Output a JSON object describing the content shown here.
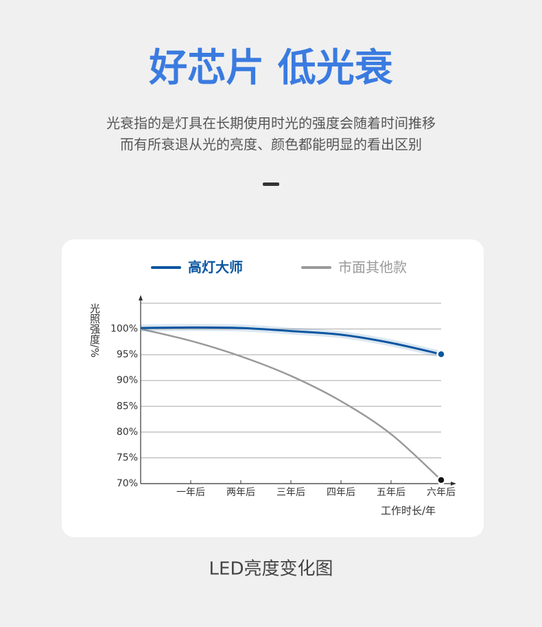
{
  "header": {
    "title": "好芯片 低光衰",
    "subtitle": [
      "光衰指的是灯具在长期使用时光的强度会随着时间推移",
      "而有所衰退从光的亮度、颜色都能明显的看出区别"
    ]
  },
  "chart_data": {
    "type": "line",
    "y_label": "光照强度/%",
    "x_label": "工作时长/年",
    "x": [
      0,
      1,
      2,
      3,
      4,
      5,
      6
    ],
    "xlim": [
      0,
      6
    ],
    "xticks": [
      {
        "value": 1,
        "label": "一年后"
      },
      {
        "value": 2,
        "label": "两年后"
      },
      {
        "value": 3,
        "label": "三年后"
      },
      {
        "value": 4,
        "label": "四年后"
      },
      {
        "value": 5,
        "label": "五年后"
      },
      {
        "value": 6,
        "label": "六年后"
      }
    ],
    "ylim": [
      70,
      105
    ],
    "yticks": [
      {
        "value": 70,
        "label": "70%"
      },
      {
        "value": 75,
        "label": "75%"
      },
      {
        "value": 80,
        "label": "80%"
      },
      {
        "value": 85,
        "label": "85%"
      },
      {
        "value": 90,
        "label": "90%"
      },
      {
        "value": 95,
        "label": "95%"
      },
      {
        "value": 100,
        "label": "100%"
      }
    ],
    "grid": true,
    "series": [
      {
        "name": "高灯大师",
        "color": "#0a55a0",
        "values": [
          100.2,
          100.3,
          100.2,
          99.6,
          98.9,
          97.3,
          95.1
        ]
      },
      {
        "name": "市面其他款",
        "color": "#9a9a9a",
        "values": [
          100,
          97.7,
          94.7,
          90.9,
          86,
          79.6,
          70.7
        ]
      }
    ]
  },
  "caption": "LED亮度变化图"
}
